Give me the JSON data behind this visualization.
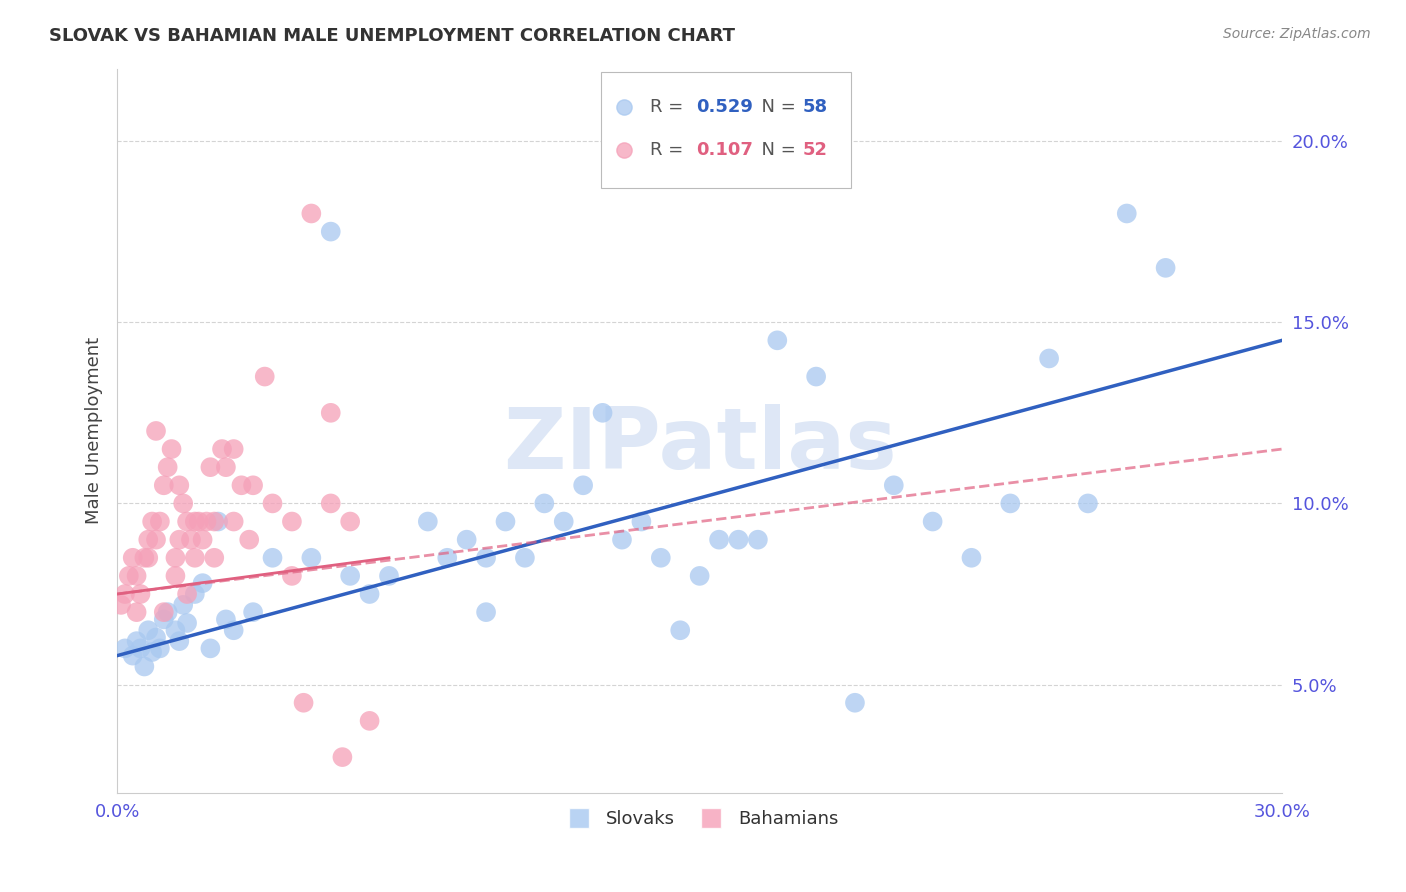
{
  "title": "SLOVAK VS BAHAMIAN MALE UNEMPLOYMENT CORRELATION CHART",
  "source": "Source: ZipAtlas.com",
  "ylabel": "Male Unemployment",
  "xlim": [
    0.0,
    30.0
  ],
  "ylim": [
    2.0,
    22.0
  ],
  "yticks": [
    5.0,
    10.0,
    15.0,
    20.0
  ],
  "ytick_labels": [
    "5.0%",
    "10.0%",
    "15.0%",
    "20.0%"
  ],
  "xticks": [
    0.0,
    5.0,
    10.0,
    15.0,
    20.0,
    25.0,
    30.0
  ],
  "xtick_labels": [
    "0.0%",
    "",
    "",
    "",
    "",
    "",
    "30.0%"
  ],
  "slovak_color": "#a8c8f0",
  "bahamian_color": "#f5a0b8",
  "slovak_line_color": "#3060c0",
  "bahamian_line_color": "#e06080",
  "watermark": "ZIPatlas",
  "watermark_color": "#c8d8f0",
  "axis_label_color": "#5555dd",
  "title_color": "#333333",
  "grid_color": "#d0d0d0",
  "slovak_line_x0": 0.0,
  "slovak_line_y0": 5.8,
  "slovak_line_x1": 30.0,
  "slovak_line_y1": 14.5,
  "bahamian_line_x0": 0.0,
  "bahamian_line_y0": 7.5,
  "bahamian_line_x1": 30.0,
  "bahamian_line_y1": 11.5,
  "bahamian_solid_x0": 0.0,
  "bahamian_solid_y0": 7.5,
  "bahamian_solid_x1": 7.0,
  "bahamian_solid_y1": 8.5,
  "slovak_x": [
    0.2,
    0.4,
    0.5,
    0.6,
    0.7,
    0.8,
    0.9,
    1.0,
    1.1,
    1.2,
    1.3,
    1.5,
    1.6,
    1.7,
    1.8,
    2.0,
    2.2,
    2.4,
    2.6,
    2.8,
    3.0,
    3.5,
    4.0,
    5.0,
    5.5,
    6.0,
    6.5,
    7.0,
    8.0,
    9.0,
    9.5,
    10.0,
    11.0,
    12.0,
    13.0,
    14.0,
    14.5,
    15.0,
    16.0,
    17.0,
    18.0,
    19.0,
    20.0,
    21.0,
    22.0,
    23.0,
    24.0,
    25.0,
    26.0,
    27.0,
    8.5,
    9.5,
    10.5,
    11.5,
    12.5,
    13.5,
    15.5,
    16.5
  ],
  "slovak_y": [
    6.0,
    5.8,
    6.2,
    6.0,
    5.5,
    6.5,
    5.9,
    6.3,
    6.0,
    6.8,
    7.0,
    6.5,
    6.2,
    7.2,
    6.7,
    7.5,
    7.8,
    6.0,
    9.5,
    6.8,
    6.5,
    7.0,
    8.5,
    8.5,
    17.5,
    8.0,
    7.5,
    8.0,
    9.5,
    9.0,
    7.0,
    9.5,
    10.0,
    10.5,
    9.0,
    8.5,
    6.5,
    8.0,
    9.0,
    14.5,
    13.5,
    4.5,
    10.5,
    9.5,
    8.5,
    10.0,
    14.0,
    10.0,
    18.0,
    16.5,
    8.5,
    8.5,
    8.5,
    9.5,
    12.5,
    9.5,
    9.0,
    9.0
  ],
  "bahamian_x": [
    0.1,
    0.2,
    0.3,
    0.4,
    0.5,
    0.6,
    0.7,
    0.8,
    0.9,
    1.0,
    1.1,
    1.2,
    1.3,
    1.4,
    1.5,
    1.6,
    1.7,
    1.8,
    1.9,
    2.0,
    2.1,
    2.2,
    2.3,
    2.5,
    2.7,
    3.0,
    3.2,
    3.5,
    4.0,
    4.5,
    5.0,
    5.5,
    6.0,
    6.5,
    1.0,
    1.5,
    2.0,
    2.5,
    3.0,
    0.5,
    1.2,
    1.8,
    2.8,
    3.8,
    4.8,
    5.8,
    0.8,
    1.6,
    2.4,
    3.4,
    4.5,
    5.5
  ],
  "bahamian_y": [
    7.2,
    7.5,
    8.0,
    8.5,
    7.0,
    7.5,
    8.5,
    9.0,
    9.5,
    9.0,
    9.5,
    10.5,
    11.0,
    11.5,
    8.5,
    9.0,
    10.0,
    9.5,
    9.0,
    8.5,
    9.5,
    9.0,
    9.5,
    9.5,
    11.5,
    11.5,
    10.5,
    10.5,
    10.0,
    9.5,
    18.0,
    12.5,
    9.5,
    4.0,
    12.0,
    8.0,
    9.5,
    8.5,
    9.5,
    8.0,
    7.0,
    7.5,
    11.0,
    13.5,
    4.5,
    3.0,
    8.5,
    10.5,
    11.0,
    9.0,
    8.0,
    10.0
  ]
}
